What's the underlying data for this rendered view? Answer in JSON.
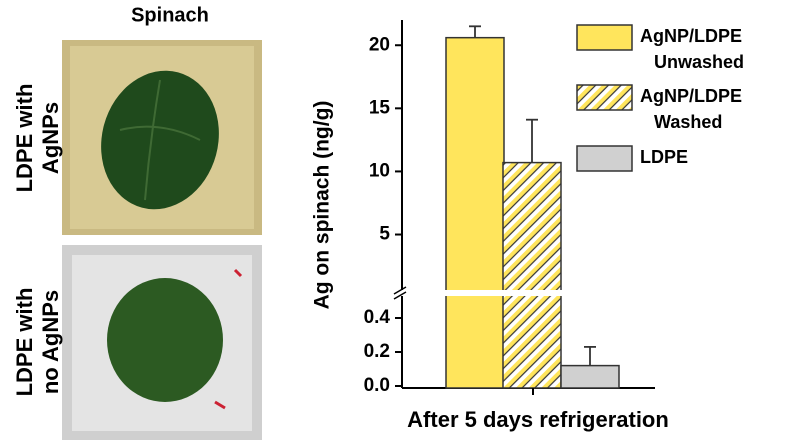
{
  "photo_panel": {
    "column_label": "Spinach",
    "row_labels": [
      [
        "LDPE with",
        "AgNPs"
      ],
      [
        "LDPE with",
        "no AgNPs"
      ]
    ]
  },
  "chart_data": {
    "type": "bar",
    "y_label": "Ag on spinach (ng/g)",
    "categories": [
      "After 5 days refrigeration"
    ],
    "segments": [
      {
        "ylim": [
          0,
          0.5
        ],
        "yticks": [
          {
            "value": 0,
            "label": "0.0"
          },
          0.2,
          0.4
        ]
      },
      {
        "ylim": [
          1,
          22
        ],
        "yticks": [
          5,
          10,
          15,
          20
        ]
      }
    ],
    "series": [
      {
        "name": "AgNP/LDPE Unwashed",
        "color": "#ffe55c",
        "hatch": false,
        "values": [
          20.6
        ],
        "errors": [
          0.9
        ]
      },
      {
        "name": "AgNP/LDPE Washed",
        "color": "#ffe55c",
        "hatch": true,
        "values": [
          10.7
        ],
        "errors": [
          3.4
        ]
      },
      {
        "name": "LDPE",
        "color": "#d0d0d0",
        "hatch": false,
        "values": [
          0.12
        ],
        "errors": [
          0.11
        ]
      }
    ]
  }
}
